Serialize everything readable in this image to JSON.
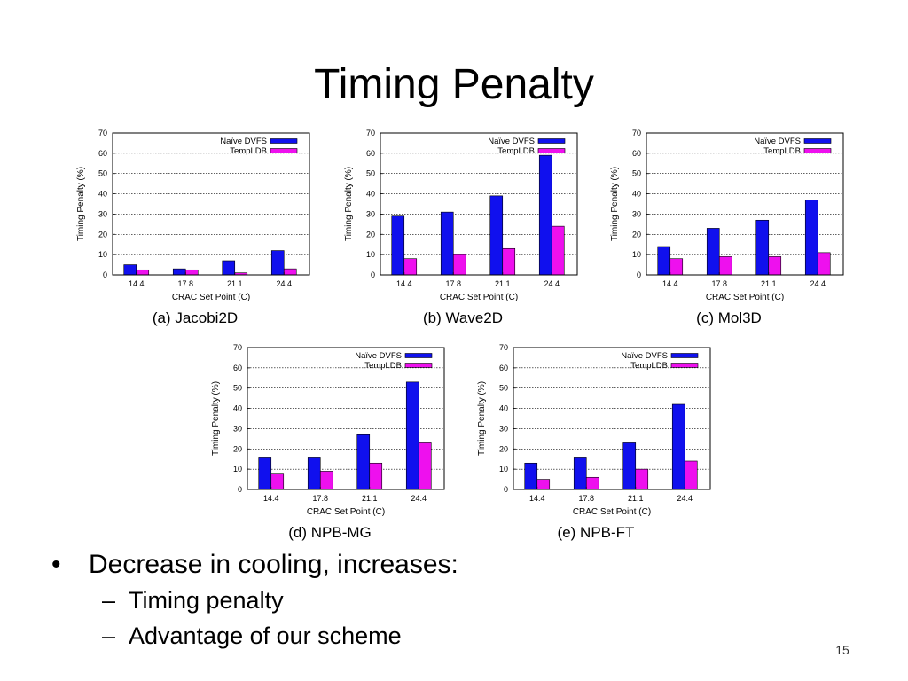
{
  "slide": {
    "title": "Timing Penalty",
    "bullet": "Decrease in cooling, increases:",
    "bullet_marker": "•",
    "sub_marker": "–",
    "sub_bullets": [
      "Timing penalty",
      "Advantage of our scheme"
    ],
    "page_number": "15"
  },
  "colors": {
    "naive": "#1010ee",
    "templdb": "#ee10ee"
  },
  "chart_data": [
    {
      "type": "bar",
      "caption": "(a) Jacobi2D",
      "categories": [
        "14.4",
        "17.8",
        "21.1",
        "24.4"
      ],
      "series": [
        {
          "name": "Naïve DVFS",
          "values": [
            5,
            3,
            7,
            12
          ]
        },
        {
          "name": "TempLDB",
          "values": [
            2.5,
            2.5,
            1,
            3
          ]
        }
      ],
      "xlabel": "CRAC Set Point (C)",
      "ylabel": "Timing Penalty (%)",
      "ylim": [
        0,
        70
      ],
      "yticks": [
        0,
        10,
        20,
        30,
        40,
        50,
        60,
        70
      ],
      "grid": true,
      "legend": "top-right"
    },
    {
      "type": "bar",
      "caption": "(b) Wave2D",
      "categories": [
        "14.4",
        "17.8",
        "21.1",
        "24.4"
      ],
      "series": [
        {
          "name": "Naïve DVFS",
          "values": [
            29,
            31,
            39,
            59
          ]
        },
        {
          "name": "TempLDB",
          "values": [
            8,
            10,
            13,
            24
          ]
        }
      ],
      "xlabel": "CRAC Set Point (C)",
      "ylabel": "Timing Penalty (%)",
      "ylim": [
        0,
        70
      ],
      "yticks": [
        0,
        10,
        20,
        30,
        40,
        50,
        60,
        70
      ],
      "grid": true,
      "legend": "top-right"
    },
    {
      "type": "bar",
      "caption": "(c) Mol3D",
      "categories": [
        "14.4",
        "17.8",
        "21.1",
        "24.4"
      ],
      "series": [
        {
          "name": "Naïve DVFS",
          "values": [
            14,
            23,
            27,
            37
          ]
        },
        {
          "name": "TempLDB",
          "values": [
            8,
            9,
            9,
            11
          ]
        }
      ],
      "xlabel": "CRAC Set Point (C)",
      "ylabel": "Timing Penalty (%)",
      "ylim": [
        0,
        70
      ],
      "yticks": [
        0,
        10,
        20,
        30,
        40,
        50,
        60,
        70
      ],
      "grid": true,
      "legend": "top-right"
    },
    {
      "type": "bar",
      "caption": "(d) NPB-MG",
      "categories": [
        "14.4",
        "17.8",
        "21.1",
        "24.4"
      ],
      "series": [
        {
          "name": "Naïve DVFS",
          "values": [
            16,
            16,
            27,
            53
          ]
        },
        {
          "name": "TempLDB",
          "values": [
            8,
            9,
            13,
            23
          ]
        }
      ],
      "xlabel": "CRAC Set Point (C)",
      "ylabel": "Timing Penalty (%)",
      "ylim": [
        0,
        70
      ],
      "yticks": [
        0,
        10,
        20,
        30,
        40,
        50,
        60,
        70
      ],
      "grid": true,
      "legend": "top-right"
    },
    {
      "type": "bar",
      "caption": "(e) NPB-FT",
      "categories": [
        "14.4",
        "17.8",
        "21.1",
        "24.4"
      ],
      "series": [
        {
          "name": "Naïve DVFS",
          "values": [
            13,
            16,
            23,
            42
          ]
        },
        {
          "name": "TempLDB",
          "values": [
            5,
            6,
            10,
            14
          ]
        }
      ],
      "xlabel": "CRAC Set Point (C)",
      "ylabel": "Timing Penalty (%)",
      "ylim": [
        0,
        70
      ],
      "yticks": [
        0,
        10,
        20,
        30,
        40,
        50,
        60,
        70
      ],
      "grid": true,
      "legend": "top-right"
    }
  ]
}
